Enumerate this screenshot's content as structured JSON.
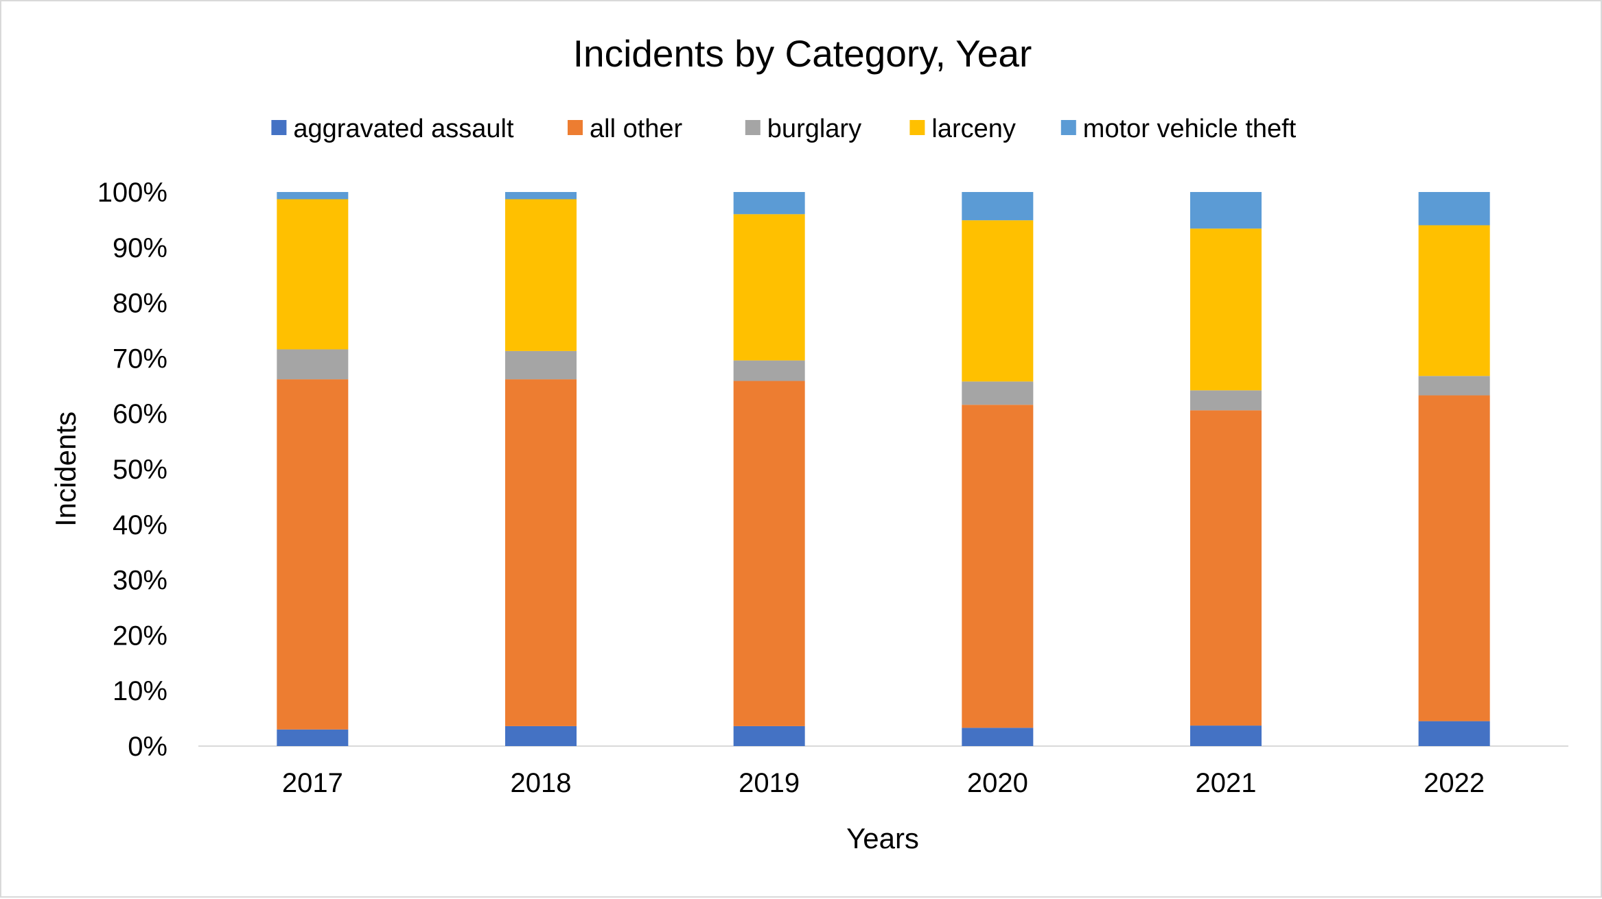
{
  "chart_data": {
    "type": "bar",
    "stacked": true,
    "percent_stacked": true,
    "title": "Incidents by Category, Year",
    "xlabel": "Years",
    "ylabel": "Incidents",
    "categories": [
      "2017",
      "2018",
      "2019",
      "2020",
      "2021",
      "2022"
    ],
    "y_ticks": [
      "0%",
      "10%",
      "20%",
      "30%",
      "40%",
      "50%",
      "60%",
      "70%",
      "80%",
      "90%",
      "100%"
    ],
    "ylim": [
      0,
      100
    ],
    "grid": false,
    "legend_position": "top",
    "series": [
      {
        "name": "aggravated assault",
        "color": "#4472C4",
        "values": [
          3.0,
          3.6,
          3.6,
          3.3,
          3.7,
          4.5
        ]
      },
      {
        "name": "all other",
        "color": "#ED7D31",
        "values": [
          63.2,
          62.6,
          62.3,
          58.3,
          56.9,
          58.8
        ]
      },
      {
        "name": "burglary",
        "color": "#A5A5A5",
        "values": [
          5.4,
          5.1,
          3.7,
          4.2,
          3.6,
          3.5
        ]
      },
      {
        "name": "larceny",
        "color": "#FFC000",
        "values": [
          27.1,
          27.4,
          26.4,
          29.1,
          29.2,
          27.2
        ]
      },
      {
        "name": "motor vehicle theft",
        "color": "#5B9BD5",
        "values": [
          1.3,
          1.3,
          4.0,
          5.1,
          6.6,
          6.0
        ]
      }
    ]
  }
}
